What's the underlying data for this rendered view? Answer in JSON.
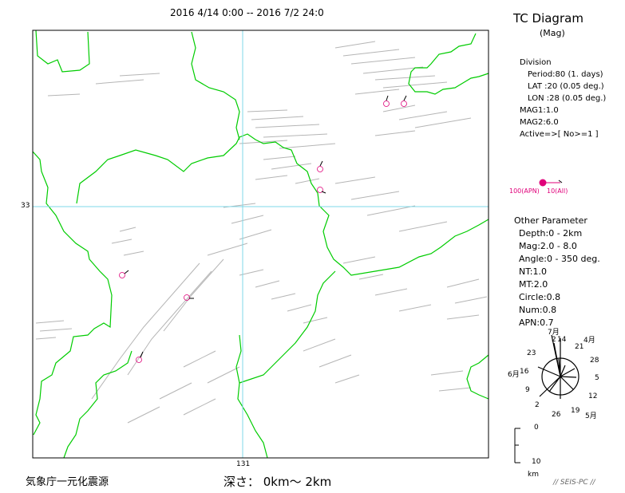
{
  "header": {
    "period_text": "2016 4/14 0:00 -- 2016 7/2 24:0"
  },
  "panel": {
    "title": "TC Diagram",
    "subtitle": "(Mag)",
    "division": {
      "heading": "Division",
      "period": "Period:80 (1. days)",
      "lat": "LAT   :20 (0.05 deg.)",
      "lon": "LON   :28 (0.05 deg.)",
      "mag1": "MAG1:1.0",
      "mag2": "MAG2:6.0",
      "active": "Active=>[ No>=1 ]"
    },
    "legend": {
      "apn_label": "100(APN)",
      "all_label": "10(All)",
      "color": "#e0007a"
    },
    "other": {
      "heading": "Other Parameter",
      "depth": "Depth:0 - 2km",
      "mag": "Mag:2.0 - 8.0",
      "angle": "Angle:0 - 350 deg.",
      "nt": "NT:1.0",
      "mt": "MT:2.0",
      "circle": "Circle:0.8",
      "num": "Num:0.8",
      "apn": "APN:0.7"
    },
    "clock": {
      "labels": [
        "7月",
        "2",
        "14",
        "4月",
        "21",
        "28",
        "5",
        "12",
        "5月",
        "19",
        "26",
        "2",
        "9",
        "6月",
        "16",
        "23"
      ]
    },
    "scale": {
      "top": "0",
      "bottom": "10",
      "unit": "km"
    }
  },
  "map": {
    "lat_label": "33",
    "lon_label": "131",
    "border_color": "#00cc00",
    "grid_color": "#7fd8e8",
    "fault_color": "#b0b0b0"
  },
  "footer": {
    "agency": "気象庁一元化震源",
    "depth": "深さ：  0km～  2km",
    "credit": "// SEIS-PC //"
  }
}
